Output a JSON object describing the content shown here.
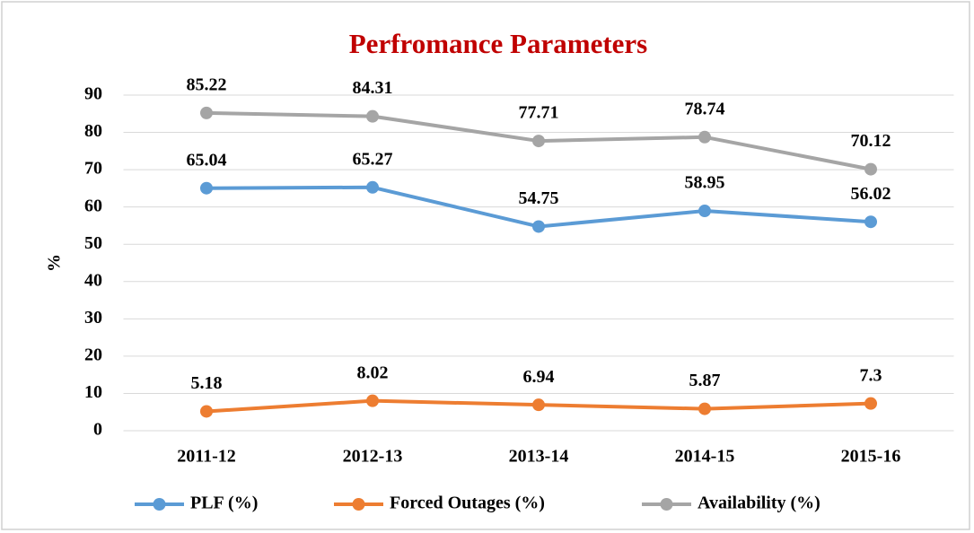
{
  "chart_data": {
    "type": "line",
    "title": "Perfromance Parameters",
    "y_label": "%",
    "categories": [
      "2011-12",
      "2012-13",
      "2013-14",
      "2014-15",
      "2015-16"
    ],
    "series": [
      {
        "name": "PLF (%)",
        "color": "#5b9bd5",
        "values": [
          65.04,
          65.27,
          54.75,
          58.95,
          56.02
        ]
      },
      {
        "name": "Forced Outages (%)",
        "color": "#ed7d31",
        "values": [
          5.18,
          8.02,
          6.94,
          5.87,
          7.3
        ]
      },
      {
        "name": "Availability (%)",
        "color": "#a5a5a5",
        "values": [
          85.22,
          84.31,
          77.71,
          78.74,
          70.12
        ]
      }
    ],
    "ylim": [
      0,
      90
    ],
    "yticks": [
      0,
      10,
      20,
      30,
      40,
      50,
      60,
      70,
      80,
      90
    ],
    "grid": true,
    "legend": "bottom"
  }
}
